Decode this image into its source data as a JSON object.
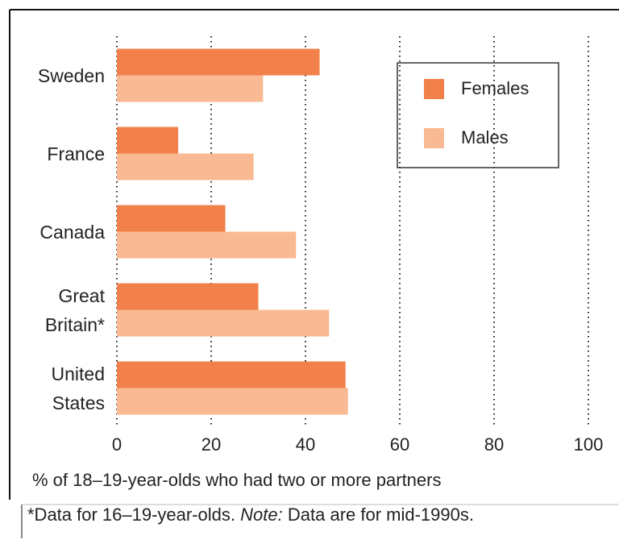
{
  "chart_data": {
    "type": "bar",
    "orientation": "horizontal",
    "categories": [
      "Sweden",
      "France",
      "Canada",
      "Great Britain*",
      "United States"
    ],
    "series": [
      {
        "name": "Females",
        "color": "#f2804a",
        "values": [
          43,
          13,
          23,
          30,
          48.5
        ]
      },
      {
        "name": "Males",
        "color": "#f9b992",
        "values": [
          31,
          29,
          38,
          45,
          49
        ]
      }
    ],
    "xlim": [
      0,
      100
    ],
    "xticks": [
      0,
      20,
      40,
      60,
      80,
      100
    ],
    "grid": true,
    "legend": "upper right",
    "xlabel": "% of 18–19-year-olds who had two or more partners",
    "footnote": {
      "prefix": "*Data for 16–19-year-olds.",
      "emphasis": "Note:",
      "text": "Data are for mid-1990s."
    }
  }
}
